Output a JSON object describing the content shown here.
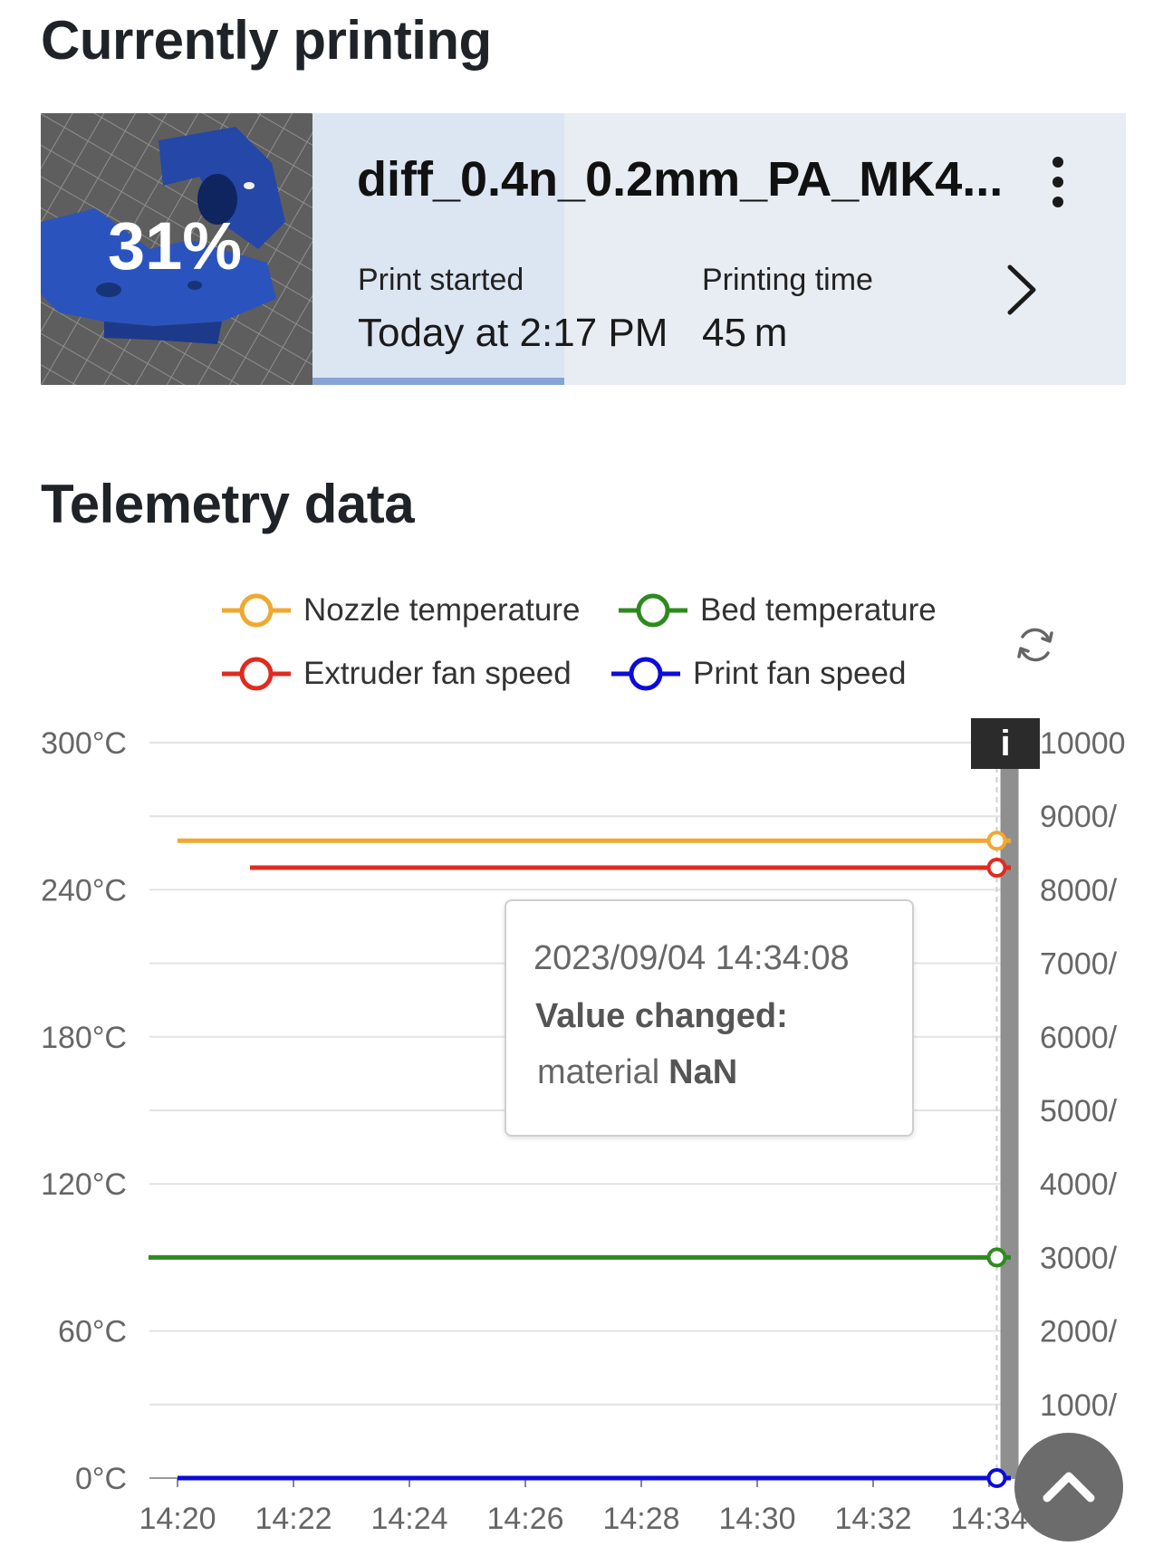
{
  "current": {
    "title": "Currently printing",
    "progress_label": "31%",
    "progress_fraction": 0.31,
    "filename": "diff_0.4n_0.2mm_PA_MK4...",
    "print_started_label": "Print started",
    "print_started_value": "Today at 2:17 PM",
    "printing_time_label": "Printing time",
    "printing_time_value": "45 m",
    "icons": {
      "menu": "kebab-menu-icon",
      "detail": "chevron-right-icon"
    }
  },
  "telemetry": {
    "title": "Telemetry data",
    "legend": [
      {
        "label": "Nozzle temperature",
        "color": "#f0a830"
      },
      {
        "label": "Bed temperature",
        "color": "#2e8a1e"
      },
      {
        "label": "Extruder fan speed",
        "color": "#e02b20"
      },
      {
        "label": "Print fan speed",
        "color": "#0b0bdc"
      }
    ],
    "tooltip": {
      "date": "2023/09/04 14:34:08",
      "heading": "Value changed:",
      "key": "material",
      "value": "NaN"
    },
    "info_badge": "i",
    "icons": {
      "refresh": "refresh-icon",
      "scroll_top": "chevron-up-icon"
    }
  },
  "chart_data": {
    "type": "line",
    "x_ticks": [
      "14:20",
      "14:22",
      "14:24",
      "14:26",
      "14:28",
      "14:30",
      "14:32",
      "14:34"
    ],
    "y_left_ticks": [
      "0°C",
      "60°C",
      "120°C",
      "180°C",
      "240°C",
      "300°C"
    ],
    "y_right_ticks": [
      "1000/",
      "2000/",
      "3000/",
      "4000/",
      "5000/",
      "6000/",
      "7000/",
      "8000/",
      "9000/",
      "10000"
    ],
    "ylim_left": [
      0,
      300
    ],
    "ylim_right": [
      0,
      10000
    ],
    "grid": true,
    "legend_position": "top",
    "series": [
      {
        "name": "Nozzle temperature",
        "axis": "left",
        "color": "#f0a830",
        "x": [
          "14:20",
          "14:34"
        ],
        "y": [
          260,
          260
        ]
      },
      {
        "name": "Extruder fan speed",
        "axis": "right",
        "color": "#e02b20",
        "x": [
          "14:21:15",
          "14:34"
        ],
        "y": [
          8300,
          8300
        ]
      },
      {
        "name": "Bed temperature",
        "axis": "left",
        "color": "#2e8a1e",
        "x": [
          "14:19:30",
          "14:34"
        ],
        "y": [
          90,
          90
        ]
      },
      {
        "name": "Print fan speed",
        "axis": "right",
        "color": "#0b0bdc",
        "x": [
          "14:20",
          "14:34"
        ],
        "y": [
          0,
          0
        ]
      }
    ],
    "marker_time": "14:34:08"
  }
}
